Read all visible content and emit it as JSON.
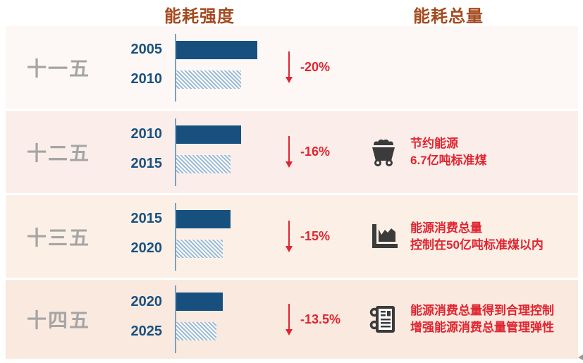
{
  "header": {
    "left_title": "能耗强度",
    "right_title": "能耗总量"
  },
  "colors": {
    "title_brown": "#a34b1f",
    "bar_navy": "#17507f",
    "hatch_blue": "#9cbad4",
    "axis_blue": "#77a2c2",
    "plan_gray": "#a5a5a5",
    "year_navy": "#1a5180",
    "red": "#e02531",
    "icon_gray": "#3b3b3b",
    "row_backgrounds": [
      "#fdf7f5",
      "#fbeeea",
      "#fcf0e6",
      "#fae9de"
    ]
  },
  "chart_data": {
    "type": "bar",
    "orientation": "horizontal",
    "columns": [
      "能耗强度",
      "能耗总量"
    ],
    "value_scale": "relative index, longest bar (2005) = 100; bars have no numeric axis, values estimated from bar lengths / stated % reductions",
    "rows": [
      {
        "plan": "十一五",
        "bars": [
          {
            "year": "2005",
            "value": 100,
            "style": "solid"
          },
          {
            "year": "2010",
            "value": 80,
            "style": "hatched"
          }
        ],
        "change": "-20%",
        "info": null
      },
      {
        "plan": "十二五",
        "bars": [
          {
            "year": "2010",
            "value": 80,
            "style": "solid"
          },
          {
            "year": "2015",
            "value": 67.2,
            "style": "hatched"
          }
        ],
        "change": "-16%",
        "info": {
          "icon": "coal-cart-icon",
          "lines": [
            "节约能源",
            "6.7亿吨标准煤"
          ]
        }
      },
      {
        "plan": "十三五",
        "bars": [
          {
            "year": "2015",
            "value": 67.2,
            "style": "solid"
          },
          {
            "year": "2020",
            "value": 57.1,
            "style": "hatched"
          }
        ],
        "change": "-15%",
        "info": {
          "icon": "area-chart-icon",
          "lines": [
            "能源消费总量",
            "控制在50亿吨标准煤以内"
          ]
        }
      },
      {
        "plan": "十四五",
        "bars": [
          {
            "year": "2020",
            "value": 57.1,
            "style": "solid"
          },
          {
            "year": "2025",
            "value": 49.4,
            "style": "hatched"
          }
        ],
        "change": "-13.5%",
        "info": {
          "icon": "notebook-icon",
          "lines": [
            "能源消费总量得到合理控制",
            "增强能源消费总量管理弹性"
          ]
        }
      }
    ]
  },
  "misc": {
    "corner_icon": "left-arrow-cursor-icon"
  }
}
